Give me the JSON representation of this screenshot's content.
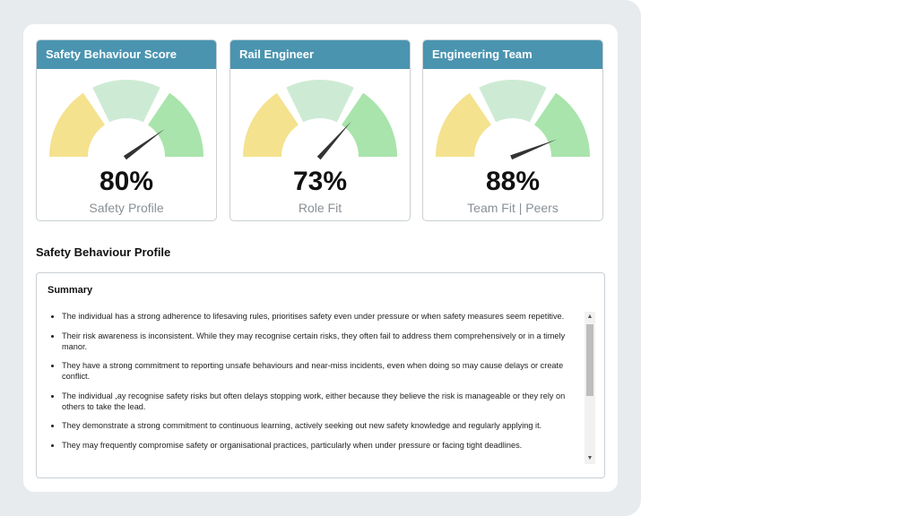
{
  "cards": [
    {
      "title": "Safety Behaviour Score",
      "percent_label": "80%",
      "value": 80,
      "subtitle": "Safety Profile"
    },
    {
      "title": "Rail Engineer",
      "percent_label": "73%",
      "value": 73,
      "subtitle": "Role Fit"
    },
    {
      "title": "Engineering Team",
      "percent_label": "88%",
      "value": 88,
      "subtitle": "Team Fit | Peers"
    }
  ],
  "gauge_colors": {
    "low": "#f4e28e",
    "mid": "#cdebd4",
    "high": "#a9e4ac",
    "needle": "#333333"
  },
  "profile": {
    "title": "Safety Behaviour Profile",
    "summary_title": "Summary",
    "items": [
      "The individual has a strong adherence to lifesaving rules, prioritises safety even under pressure or when safety measures seem repetitive.",
      "Their risk awareness is inconsistent. While they may recognise certain risks, they often fail to address them comprehensively or in a timely manor.",
      "They have a strong commitment to reporting unsafe behaviours and near-miss incidents, even when doing so may cause delays or create conflict.",
      "The individual ,ay recognise safety risks but often delays stopping work, either because they believe the risk is manageable or they rely on others to take the lead.",
      "They demonstrate a strong commitment to continuous learning, actively seeking out new safety knowledge and regularly applying it.",
      "They may frequently compromise safety or organisational practices, particularly when under pressure or facing tight deadlines."
    ]
  },
  "scrollbar": {
    "up_icon": "▲",
    "down_icon": "▼"
  }
}
